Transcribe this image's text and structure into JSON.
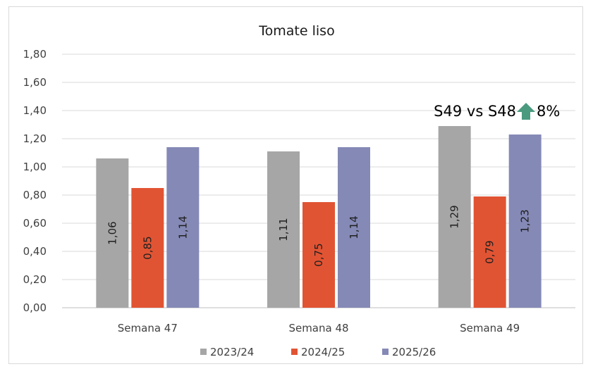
{
  "chart_data": {
    "type": "bar",
    "title": "Tomate liso",
    "categories": [
      "Semana 47",
      "Semana 48",
      "Semana 49"
    ],
    "series": [
      {
        "name": "2023/24",
        "color": "#a6a6a6",
        "values": [
          1.06,
          1.11,
          1.29
        ],
        "labels": [
          "1,06",
          "1,11",
          "1,29"
        ]
      },
      {
        "name": "2024/25",
        "color": "#e15433",
        "values": [
          0.85,
          0.75,
          0.79
        ],
        "labels": [
          "0,85",
          "0,75",
          "0,79"
        ]
      },
      {
        "name": "2025/26",
        "color": "#8589b6",
        "values": [
          1.14,
          1.14,
          1.23
        ],
        "labels": [
          "1,14",
          "1,14",
          "1,23"
        ]
      }
    ],
    "ylim": [
      0,
      1.8
    ],
    "yticks": [
      "0,00",
      "0,20",
      "0,40",
      "0,60",
      "0,80",
      "1,00",
      "1,20",
      "1,40",
      "1,60",
      "1,80"
    ],
    "grid": true,
    "legend": "bottom",
    "annotation": {
      "text_left": "S49 vs S48",
      "text_right": "8%",
      "icon": "up-arrow-icon",
      "icon_color": "#4a9a80"
    }
  }
}
